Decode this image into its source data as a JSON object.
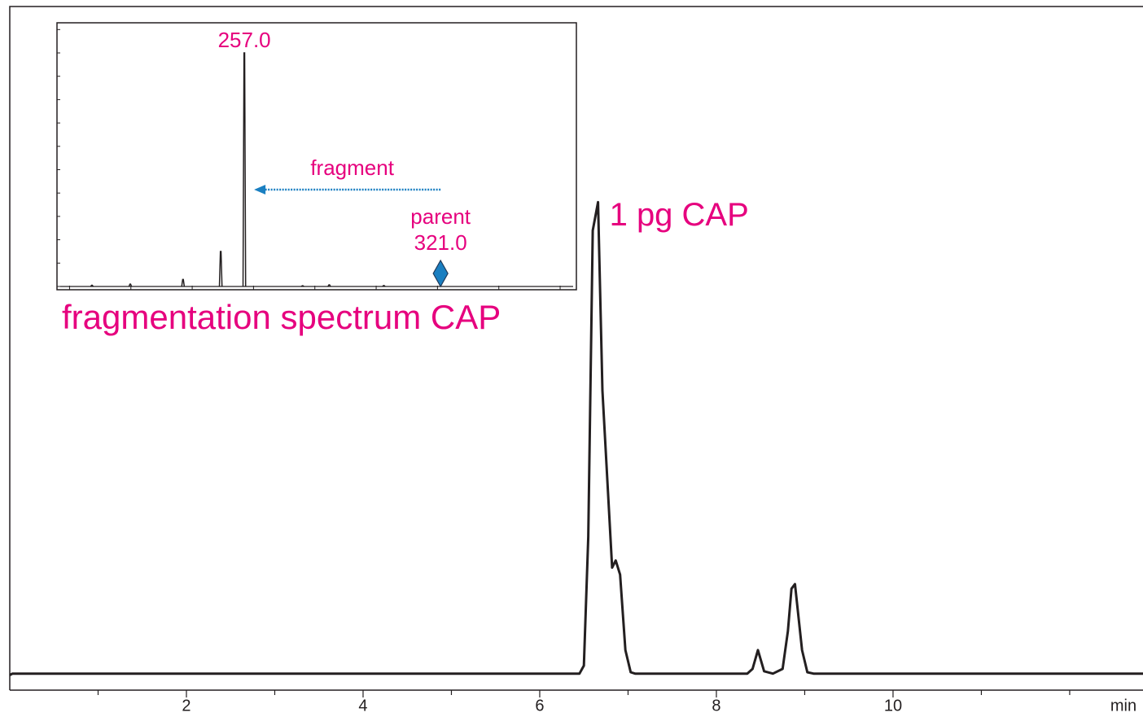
{
  "chart_data": [
    {
      "type": "line",
      "x": [
        0,
        0.03,
        6.45,
        6.5,
        6.55,
        6.6,
        6.66,
        6.71,
        6.82,
        6.86,
        6.91,
        6.97,
        7.03,
        7.08,
        8.35,
        8.41,
        8.47,
        8.54,
        8.64,
        8.75,
        8.81,
        8.85,
        8.89,
        8.97,
        9.03,
        9.1,
        12.83
      ],
      "values": [
        -0.3,
        0,
        0,
        1.7,
        29,
        94,
        100,
        60,
        22.5,
        24,
        21,
        5,
        0.3,
        0,
        0,
        1,
        5,
        0.5,
        0,
        1,
        9,
        18,
        19,
        5,
        0.3,
        0,
        0
      ],
      "color": "#231f20",
      "xlim": [
        0,
        12.83
      ],
      "ylim": [
        -3.5,
        141.5
      ],
      "xticks": [
        2,
        4,
        6,
        8,
        10
      ],
      "xminorticks": [
        1,
        3,
        5,
        7,
        9,
        11,
        12
      ],
      "x_label": "min",
      "annotation": "1 pg CAP",
      "annotation_color": "#e6007e"
    },
    {
      "type": "stick",
      "title": "fragmentation spectrum CAP",
      "x": [
        207.3,
        219.8,
        237.0,
        249.3,
        257.0,
        276.0,
        284.7,
        302.5
      ],
      "values": [
        0.5,
        1,
        3,
        15,
        100,
        0.3,
        0.7,
        0.4
      ],
      "color": "#231f20",
      "xlim": [
        195.9,
        365.3
      ],
      "ylim": [
        -1.4,
        112.9
      ],
      "xticks": [
        200,
        220,
        240,
        260,
        280,
        300,
        320,
        340,
        360
      ],
      "yticks": [
        0,
        10,
        20,
        30,
        40,
        50,
        60,
        70,
        80,
        90,
        100,
        110
      ],
      "annotation_color": "#e6007e",
      "peak_label": {
        "value": 257,
        "label": "257.0"
      },
      "parent": {
        "name": "parent",
        "value": 321,
        "label": "321.0",
        "color": "#1a7fc1"
      },
      "fragment_arrow": {
        "label": "fragment",
        "from": 321,
        "to": 257,
        "color": "#1a7fc1"
      }
    }
  ]
}
